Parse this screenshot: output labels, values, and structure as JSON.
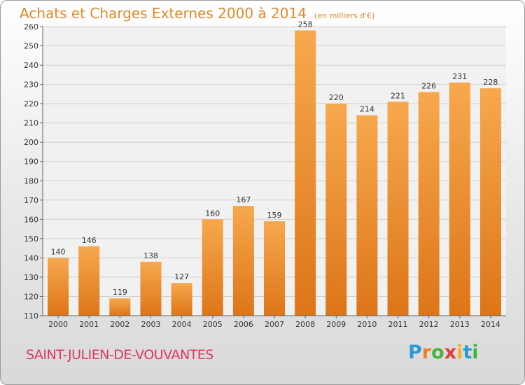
{
  "header": {
    "title": "Achats et Charges Externes 2000 à 2014",
    "unit": "(en milliers d'€)"
  },
  "footer": {
    "commune": "SAINT-JULIEN-DE-VOUVANTES",
    "logo_text": "Proxiti"
  },
  "colors": {
    "bar_light": "#f7a84d",
    "bar_dark": "#dd7518",
    "title": "#e08a2a",
    "commune": "#e0365f"
  },
  "chart_data": {
    "type": "bar",
    "title": "Achats et Charges Externes 2000 à 2014",
    "subtitle": "(en milliers d'€)",
    "xlabel": "",
    "ylabel": "",
    "categories": [
      "2000",
      "2001",
      "2002",
      "2003",
      "2004",
      "2005",
      "2006",
      "2007",
      "2008",
      "2009",
      "2010",
      "2011",
      "2012",
      "2013",
      "2014"
    ],
    "values": [
      140,
      146,
      119,
      138,
      127,
      160,
      167,
      159,
      258,
      220,
      214,
      221,
      226,
      231,
      228
    ],
    "ylim": [
      110,
      260
    ],
    "yticks": [
      110,
      120,
      130,
      140,
      150,
      160,
      170,
      180,
      190,
      200,
      210,
      220,
      230,
      240,
      250,
      260
    ],
    "grid": true,
    "legend": "none"
  }
}
